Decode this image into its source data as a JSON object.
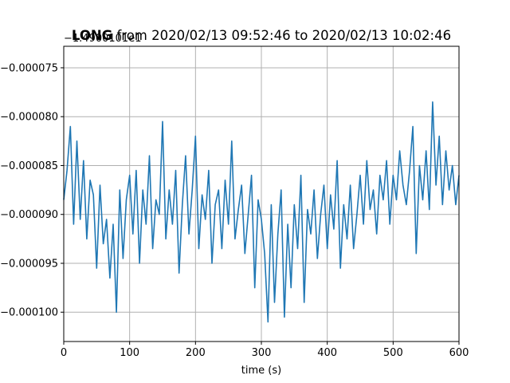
{
  "chart_data": {
    "type": "line",
    "title_bold": "LONG",
    "title_rest": " from 2020/02/13 09:52:46 to 2020/02/13 10:02:46",
    "offset_label": "−1.4900101e1",
    "xlabel": "time (s)",
    "ylabel": "",
    "xlim": [
      0,
      600
    ],
    "ylim": [
      -0.000103,
      -7.28e-05
    ],
    "grid": true,
    "series_color": "#1f77b4",
    "x_ticks": [
      {
        "value": 0,
        "label": "0"
      },
      {
        "value": 100,
        "label": "100"
      },
      {
        "value": 200,
        "label": "200"
      },
      {
        "value": 300,
        "label": "300"
      },
      {
        "value": 400,
        "label": "400"
      },
      {
        "value": 500,
        "label": "500"
      },
      {
        "value": 600,
        "label": "600"
      }
    ],
    "y_ticks": [
      {
        "value": -7.5e-05,
        "label": "−0.000075"
      },
      {
        "value": -8e-05,
        "label": "−0.000080"
      },
      {
        "value": -8.5e-05,
        "label": "−0.000085"
      },
      {
        "value": -9e-05,
        "label": "−0.000090"
      },
      {
        "value": -9.5e-05,
        "label": "−0.000095"
      },
      {
        "value": -0.0001,
        "label": "−0.000100"
      }
    ],
    "series": [
      {
        "x": [
          0,
          5,
          10,
          15,
          20,
          25,
          30,
          35,
          40,
          45,
          50,
          55,
          60,
          65,
          70,
          75,
          80,
          85,
          90,
          95,
          100,
          105,
          110,
          115,
          120,
          125,
          130,
          135,
          140,
          145,
          150,
          155,
          160,
          165,
          170,
          175,
          180,
          185,
          190,
          195,
          200,
          205,
          210,
          215,
          220,
          225,
          230,
          235,
          240,
          245,
          250,
          255,
          260,
          265,
          270,
          275,
          280,
          285,
          290,
          295,
          300,
          305,
          310,
          315,
          320,
          325,
          330,
          335,
          340,
          345,
          350,
          355,
          360,
          365,
          370,
          375,
          380,
          385,
          390,
          395,
          400,
          405,
          410,
          415,
          420,
          425,
          430,
          435,
          440,
          445,
          450,
          455,
          460,
          465,
          470,
          475,
          480,
          485,
          490,
          495,
          500,
          505,
          510,
          515,
          520,
          525,
          530,
          535,
          540,
          545,
          550,
          555,
          560,
          565,
          570,
          575,
          580,
          585,
          590,
          595,
          600
        ],
        "y": [
          -8.85e-05,
          -8.55e-05,
          -8.1e-05,
          -9.1e-05,
          -8.25e-05,
          -9.05e-05,
          -8.45e-05,
          -9.25e-05,
          -8.65e-05,
          -8.8e-05,
          -9.55e-05,
          -8.7e-05,
          -9.3e-05,
          -9.05e-05,
          -9.65e-05,
          -9.1e-05,
          -0.0001,
          -8.75e-05,
          -9.45e-05,
          -8.85e-05,
          -8.6e-05,
          -9.2e-05,
          -8.55e-05,
          -9.5e-05,
          -8.75e-05,
          -9.1e-05,
          -8.4e-05,
          -9.35e-05,
          -8.85e-05,
          -9e-05,
          -8.05e-05,
          -9.25e-05,
          -8.75e-05,
          -9.1e-05,
          -8.55e-05,
          -9.6e-05,
          -8.9e-05,
          -8.4e-05,
          -9.2e-05,
          -8.75e-05,
          -8.2e-05,
          -9.35e-05,
          -8.8e-05,
          -9.05e-05,
          -8.55e-05,
          -9.5e-05,
          -8.9e-05,
          -8.75e-05,
          -9.35e-05,
          -8.65e-05,
          -9.1e-05,
          -8.25e-05,
          -9.25e-05,
          -8.95e-05,
          -8.7e-05,
          -9.4e-05,
          -9e-05,
          -8.6e-05,
          -9.75e-05,
          -8.85e-05,
          -9.05e-05,
          -9.4e-05,
          -0.000101,
          -8.9e-05,
          -9.9e-05,
          -9.2e-05,
          -8.75e-05,
          -0.0001005,
          -9.1e-05,
          -9.75e-05,
          -8.9e-05,
          -9.35e-05,
          -8.6e-05,
          -9.9e-05,
          -8.95e-05,
          -9.2e-05,
          -8.75e-05,
          -9.45e-05,
          -9e-05,
          -8.7e-05,
          -9.35e-05,
          -8.8e-05,
          -9.15e-05,
          -8.45e-05,
          -9.55e-05,
          -8.9e-05,
          -9.25e-05,
          -8.7e-05,
          -9.35e-05,
          -9e-05,
          -8.6e-05,
          -9.1e-05,
          -8.45e-05,
          -8.95e-05,
          -8.75e-05,
          -9.2e-05,
          -8.6e-05,
          -8.85e-05,
          -8.45e-05,
          -9.1e-05,
          -8.6e-05,
          -8.85e-05,
          -8.35e-05,
          -8.7e-05,
          -8.9e-05,
          -8.55e-05,
          -8.1e-05,
          -9.4e-05,
          -8.5e-05,
          -8.85e-05,
          -8.35e-05,
          -8.95e-05,
          -7.85e-05,
          -8.7e-05,
          -8.2e-05,
          -8.9e-05,
          -8.35e-05,
          -8.75e-05,
          -8.5e-05,
          -8.9e-05,
          -8.6e-05
        ]
      }
    ]
  }
}
